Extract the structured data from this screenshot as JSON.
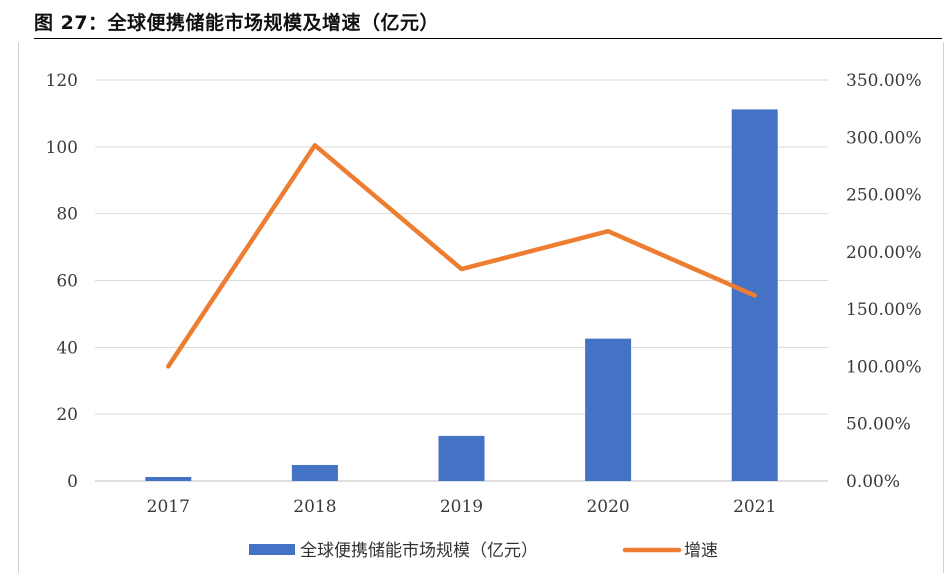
{
  "title": "图 27：全球便携储能市场规模及增速（亿元）",
  "chart_data": {
    "type": "bar+line",
    "categories": [
      "2017",
      "2018",
      "2019",
      "2020",
      "2021"
    ],
    "series": [
      {
        "name": "全球便携储能市场规模（亿元）",
        "type": "bar",
        "axis": "left",
        "color": "#4472C4",
        "values": [
          1.2,
          4.8,
          13.5,
          42.6,
          111.2
        ]
      },
      {
        "name": "增速",
        "type": "line",
        "axis": "right",
        "color": "#ED7D31",
        "values": [
          1.0,
          2.93,
          1.85,
          2.18,
          1.62
        ]
      }
    ],
    "y_left": {
      "min": 0,
      "max": 120,
      "ticks": [
        "0",
        "20",
        "40",
        "60",
        "80",
        "100",
        "120"
      ]
    },
    "y_right": {
      "min": 0,
      "max": 3.5,
      "ticks": [
        "0.00%",
        "50.00%",
        "100.00%",
        "150.00%",
        "200.00%",
        "250.00%",
        "300.00%",
        "350.00%"
      ]
    },
    "grid": true,
    "legend": "bottom"
  }
}
